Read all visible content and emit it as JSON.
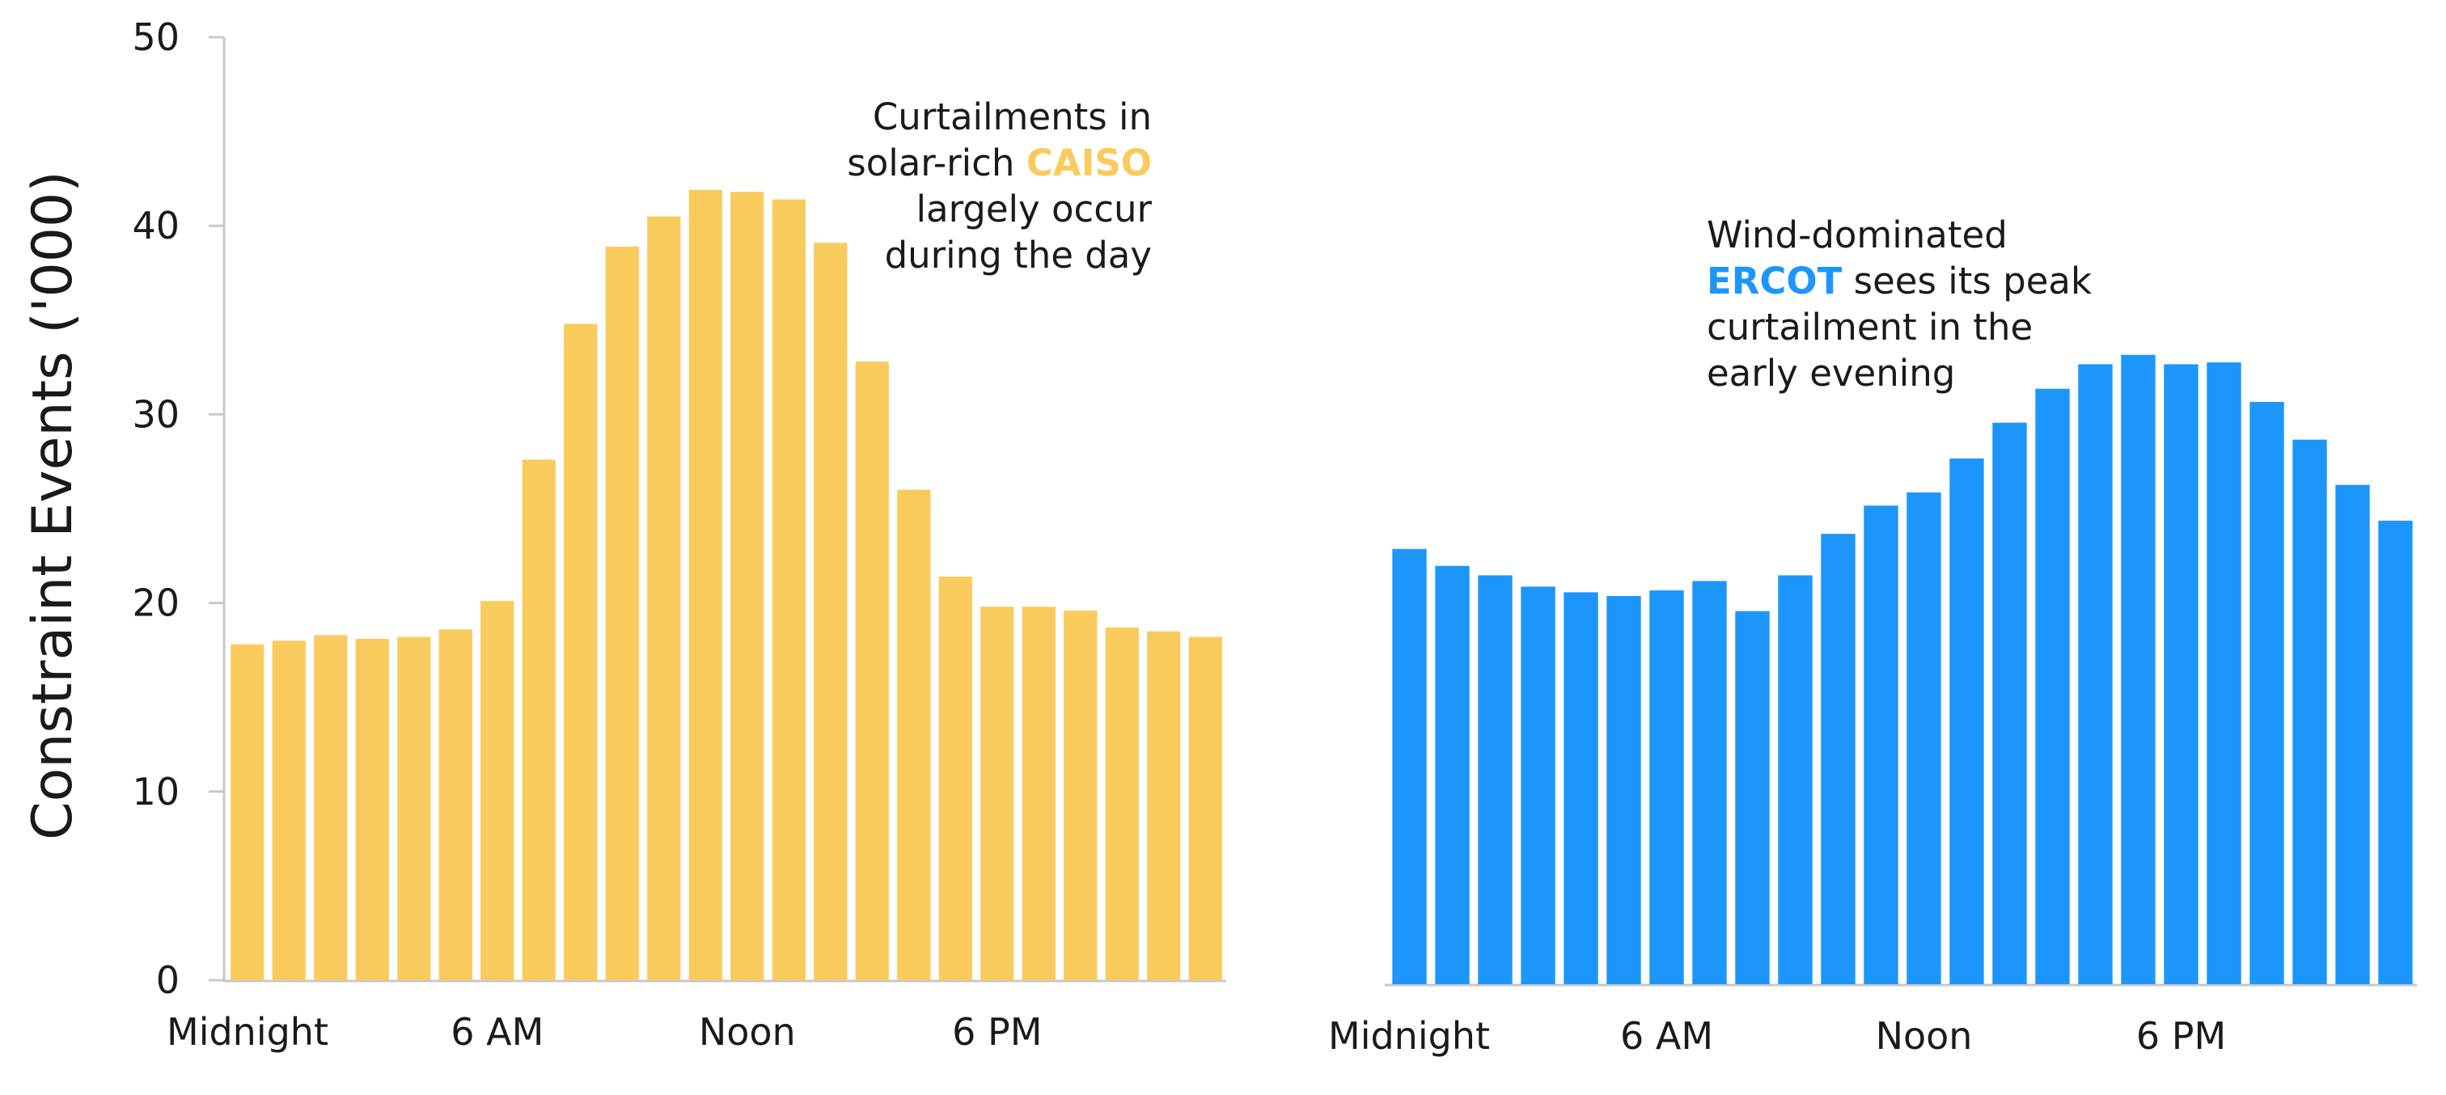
{
  "chart_data": [
    {
      "type": "bar",
      "region": "CAISO",
      "ylabel": "Constraint Events ('000)",
      "ylim": [
        0,
        50
      ],
      "yticks": [
        0,
        10,
        20,
        30,
        40,
        50
      ],
      "xticks": [
        "Midnight",
        "6 AM",
        "Noon",
        "6 PM"
      ],
      "xtick_hours": [
        0,
        6,
        12,
        18
      ],
      "hours": [
        0,
        1,
        2,
        3,
        4,
        5,
        6,
        7,
        8,
        9,
        10,
        11,
        12,
        13,
        14,
        15,
        16,
        17,
        18,
        19,
        20,
        21,
        22,
        23
      ],
      "values": [
        17.8,
        18.0,
        18.3,
        18.1,
        18.2,
        18.6,
        20.1,
        27.6,
        34.8,
        38.9,
        40.5,
        41.9,
        41.8,
        41.4,
        39.1,
        32.8,
        26.0,
        21.4,
        19.8,
        19.8,
        19.6,
        18.7,
        18.5,
        18.2
      ],
      "color": "#f9cb5d",
      "annotation": {
        "lines": [
          "Curtailments in",
          "solar-rich ",
          "largely occur",
          "during the day"
        ],
        "highlight": "CAISO",
        "highlight_color": "#f9cb5d"
      }
    },
    {
      "type": "bar",
      "region": "ERCOT",
      "ylim": [
        0,
        50
      ],
      "xticks": [
        "Midnight",
        "6 AM",
        "Noon",
        "6 PM"
      ],
      "xtick_hours": [
        0,
        6,
        12,
        18
      ],
      "hours": [
        0,
        1,
        2,
        3,
        4,
        5,
        6,
        7,
        8,
        9,
        10,
        11,
        12,
        13,
        14,
        15,
        16,
        17,
        18,
        19,
        20,
        21,
        22,
        23
      ],
      "values": [
        23.1,
        22.2,
        21.7,
        21.1,
        20.8,
        20.6,
        20.9,
        21.4,
        19.8,
        21.7,
        23.9,
        25.4,
        26.1,
        27.9,
        29.8,
        31.6,
        32.9,
        33.4,
        32.9,
        33.0,
        30.9,
        28.9,
        26.5,
        24.6
      ],
      "color": "#1d96fb",
      "annotation": {
        "lines": [
          "Wind-dominated",
          " sees its peak",
          "curtailment in the",
          "early evening"
        ],
        "highlight": "ERCOT",
        "highlight_color": "#1d96fb"
      }
    }
  ]
}
